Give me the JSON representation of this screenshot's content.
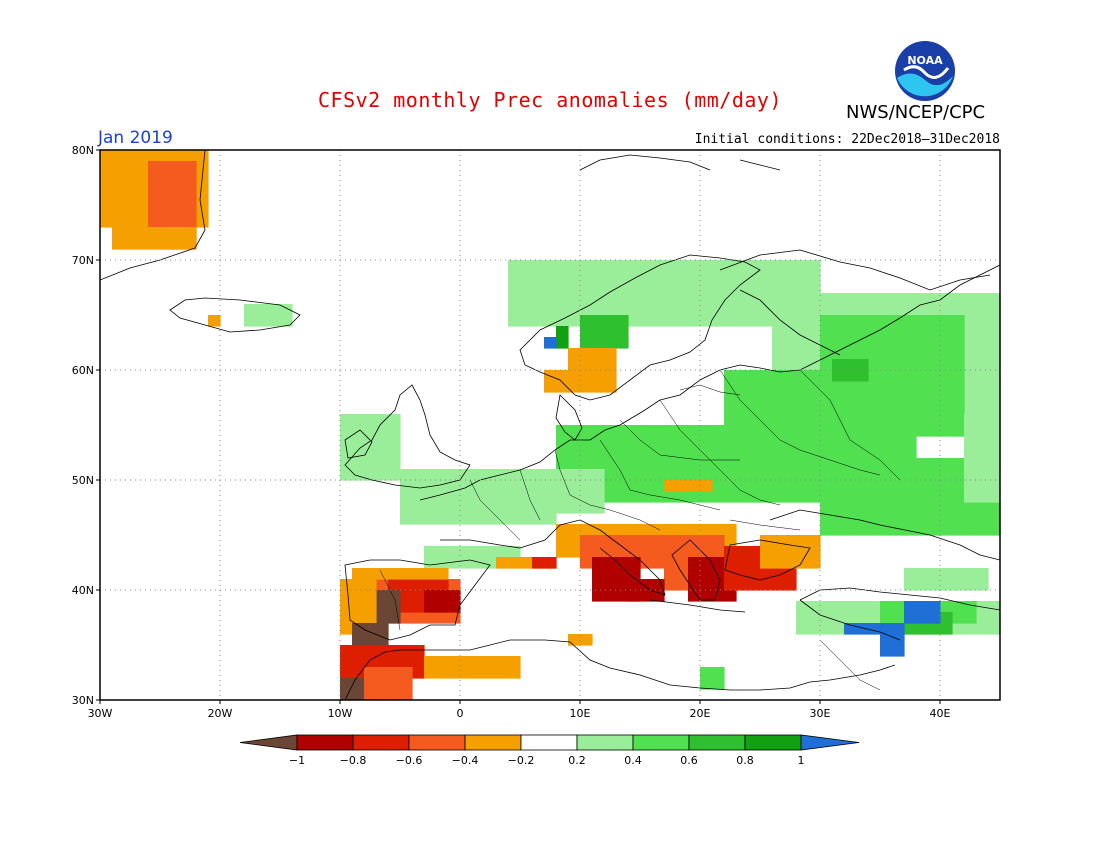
{
  "header": {
    "title": "CFSv2 monthly Prec anomalies (mm/day)",
    "agency": "NWS/NCEP/CPC",
    "month": "Jan 2019",
    "initial_conditions": "Initial conditions: 22Dec2018–31Dec2018",
    "logo_text": "NOAA"
  },
  "map": {
    "lon_range": [
      -30,
      45
    ],
    "lat_range": [
      30,
      80
    ],
    "lat_ticks": [
      "80N",
      "70N",
      "60N",
      "50N",
      "40N",
      "30N"
    ],
    "lon_ticks": [
      "30W",
      "20W",
      "10W",
      "0",
      "10E",
      "20E",
      "30E",
      "40E"
    ],
    "grid": "dotted"
  },
  "legend": {
    "labels": [
      "−1",
      "−0.8",
      "−0.6",
      "−0.4",
      "−0.2",
      "0.2",
      "0.4",
      "0.6",
      "0.8",
      "1"
    ],
    "colors": {
      "lt_-1": "#6b4535",
      "-1_-0.8": "#b00000",
      "-0.8_-0.6": "#dd1f00",
      "-0.6_-0.4": "#f55a1e",
      "-0.4_-0.2": "#f5a000",
      "-0.2_0.2": "#ffffff",
      "0.2_0.4": "#9aee9a",
      "0.4_0.6": "#50e050",
      "0.6_0.8": "#2ec02e",
      "0.8_1": "#10a010",
      "gt_1": "#1f6fd6"
    }
  }
}
